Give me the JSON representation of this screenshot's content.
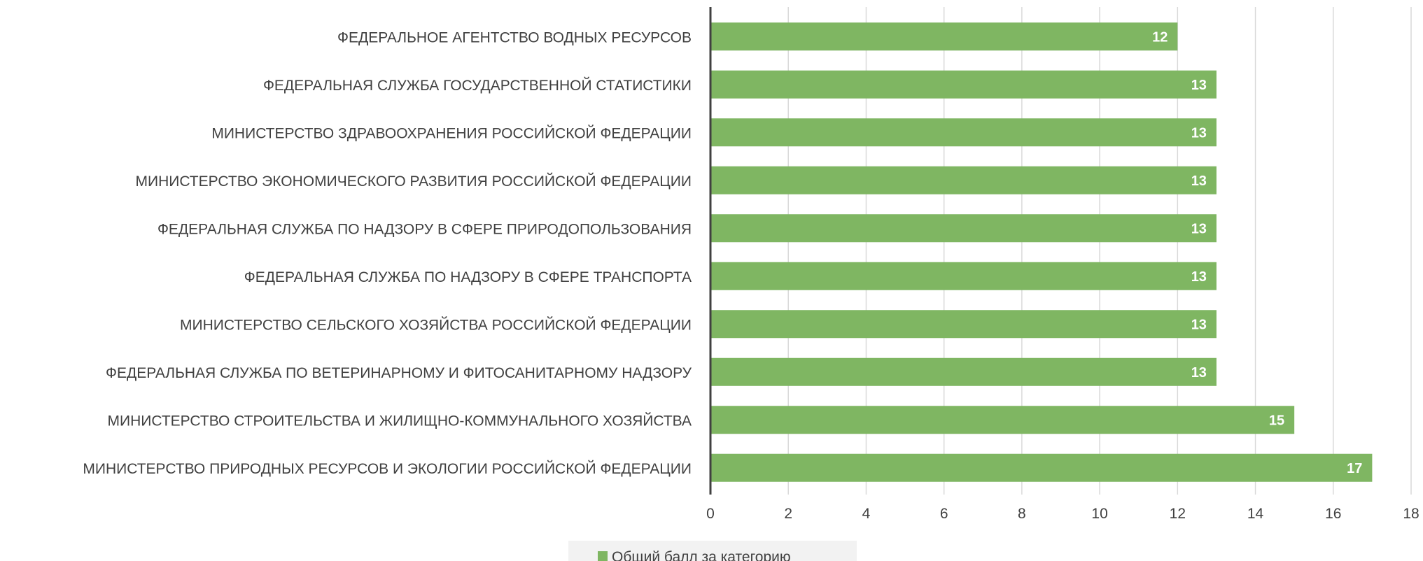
{
  "chart_data": {
    "type": "bar",
    "orientation": "horizontal",
    "categories": [
      "ФЕДЕРАЛЬНОЕ АГЕНТСТВО ВОДНЫХ РЕСУРСОВ",
      "ФЕДЕРАЛЬНАЯ СЛУЖБА ГОСУДАРСТВЕННОЙ СТАТИСТИКИ",
      "МИНИСТЕРСТВО ЗДРАВООХРАНЕНИЯ РОССИЙСКОЙ ФЕДЕРАЦИИ",
      "МИНИСТЕРСТВО ЭКОНОМИЧЕСКОГО РАЗВИТИЯ РОССИЙСКОЙ ФЕДЕРАЦИИ",
      "ФЕДЕРАЛЬНАЯ СЛУЖБА ПО НАДЗОРУ В СФЕРЕ ПРИРОДОПОЛЬЗОВАНИЯ",
      "ФЕДЕРАЛЬНАЯ СЛУЖБА ПО НАДЗОРУ В СФЕРЕ ТРАНСПОРТА",
      "МИНИСТЕРСТВО СЕЛЬСКОГО ХОЗЯЙСТВА РОССИЙСКОЙ ФЕДЕРАЦИИ",
      "ФЕДЕРАЛЬНАЯ СЛУЖБА ПО ВЕТЕРИНАРНОМУ И ФИТОСАНИТАРНОМУ НАДЗОРУ",
      "МИНИСТЕРСТВО СТРОИТЕЛЬСТВА И ЖИЛИЩНО-КОММУНАЛЬНОГО ХОЗЯЙСТВА",
      "МИНИСТЕРСТВО ПРИРОДНЫХ РЕСУРСОВ И ЭКОЛОГИИ РОССИЙСКОЙ ФЕДЕРАЦИИ"
    ],
    "series": [
      {
        "name": "Общий балл за категорию",
        "values": [
          12,
          13,
          13,
          13,
          13,
          13,
          13,
          13,
          15,
          17
        ],
        "color": "#7fb662"
      }
    ],
    "x_ticks": [
      "0",
      "2",
      "4",
      "6",
      "8",
      "10",
      "12",
      "14",
      "16",
      "18"
    ],
    "xlim": [
      0,
      18
    ],
    "data_labels": true,
    "grid": {
      "vertical": true,
      "horizontal": false
    },
    "legend_placement": "bottom-center",
    "colors": {
      "bar": "#7fb662",
      "grid": "#d9d9d9",
      "axis": "#404040",
      "text": "#404040",
      "legend_bg": "#f2f2f2",
      "data_label": "#ffffff"
    }
  }
}
